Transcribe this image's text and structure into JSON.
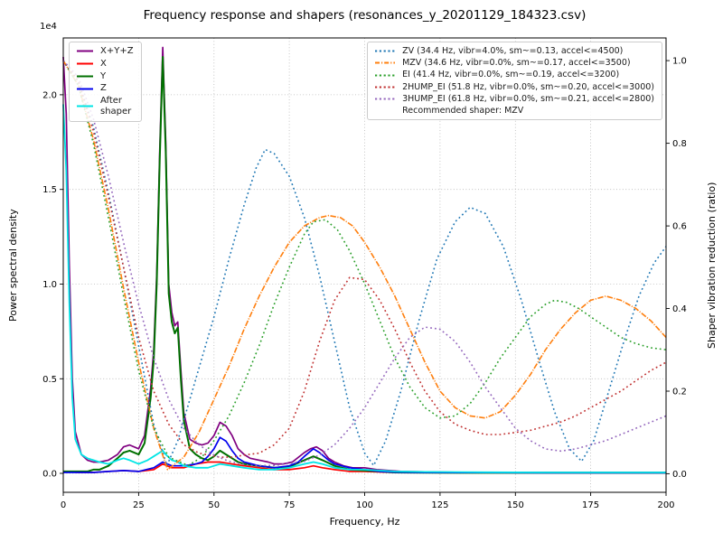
{
  "chart_data": {
    "type": "line",
    "title": "Frequency response and shapers (resonances_y_20201129_184323.csv)",
    "legend_note": "Recommended shaper: MZV",
    "x_axis": {
      "label": "Frequency, Hz",
      "range": [
        0,
        200
      ],
      "ticks": [
        0,
        25,
        50,
        75,
        100,
        125,
        150,
        175,
        200
      ],
      "tick_labels": [
        "0",
        "25",
        "50",
        "75",
        "100",
        "125",
        "150",
        "175",
        "200"
      ]
    },
    "left_axis": {
      "label": "Power spectral density",
      "offset_text": "1e4",
      "range": [
        -0.1,
        2.3
      ],
      "ticks": [
        0.0,
        0.5,
        1.0,
        1.5,
        2.0
      ],
      "tick_labels": [
        "0.0",
        "0.5",
        "1.0",
        "1.5",
        "2.0"
      ]
    },
    "right_axis": {
      "label": "Shaper vibration reduction (ratio)",
      "range": [
        -0.045,
        1.055
      ],
      "ticks": [
        0.0,
        0.2,
        0.4,
        0.6,
        0.8,
        1.0
      ],
      "tick_labels": [
        "0.0",
        "0.2",
        "0.4",
        "0.6",
        "0.8",
        "1.0"
      ]
    },
    "grid": true,
    "series": [
      {
        "id": "xyz",
        "legend": "left",
        "label": "X+Y+Z",
        "axis": "left",
        "color": "#800080",
        "style": "solid",
        "width": 1.7,
        "x": [
          0,
          1,
          2,
          3,
          4,
          6,
          8,
          10,
          12,
          15,
          18,
          20,
          22,
          25,
          27,
          29,
          30,
          31,
          32,
          33,
          34,
          35,
          36,
          37,
          38,
          39,
          40,
          42,
          44,
          46,
          48,
          50,
          52,
          54,
          56,
          58,
          60,
          62,
          65,
          68,
          70,
          73,
          76,
          80,
          82,
          84,
          86,
          88,
          90,
          93,
          96,
          100,
          104,
          108,
          112,
          120,
          130,
          140,
          160,
          180,
          200
        ],
        "y": [
          2.2,
          1.9,
          1.1,
          0.5,
          0.22,
          0.1,
          0.07,
          0.06,
          0.06,
          0.07,
          0.1,
          0.14,
          0.15,
          0.13,
          0.2,
          0.45,
          0.65,
          1.05,
          1.7,
          2.25,
          1.75,
          1.0,
          0.85,
          0.78,
          0.8,
          0.55,
          0.32,
          0.18,
          0.16,
          0.15,
          0.16,
          0.2,
          0.27,
          0.25,
          0.2,
          0.13,
          0.1,
          0.08,
          0.07,
          0.06,
          0.05,
          0.05,
          0.06,
          0.11,
          0.13,
          0.14,
          0.12,
          0.08,
          0.06,
          0.04,
          0.03,
          0.03,
          0.02,
          0.015,
          0.01,
          0.008,
          0.006,
          0.005,
          0.005,
          0.005,
          0.005
        ]
      },
      {
        "id": "x",
        "legend": "left",
        "label": "X",
        "axis": "left",
        "color": "#ff0000",
        "style": "solid",
        "width": 1.7,
        "x": [
          0,
          5,
          10,
          15,
          20,
          25,
          30,
          33,
          36,
          40,
          44,
          48,
          52,
          56,
          60,
          65,
          70,
          75,
          80,
          83,
          86,
          90,
          95,
          100,
          110,
          120,
          140,
          160,
          180,
          200
        ],
        "y": [
          0.01,
          0.005,
          0.005,
          0.01,
          0.015,
          0.01,
          0.02,
          0.05,
          0.03,
          0.03,
          0.05,
          0.06,
          0.06,
          0.05,
          0.04,
          0.03,
          0.02,
          0.02,
          0.03,
          0.04,
          0.03,
          0.02,
          0.01,
          0.01,
          0.005,
          0.004,
          0.003,
          0.003,
          0.003,
          0.003
        ]
      },
      {
        "id": "y",
        "legend": "left",
        "label": "Y",
        "axis": "left",
        "color": "#007000",
        "style": "solid",
        "width": 2,
        "x": [
          0,
          2,
          4,
          6,
          8,
          10,
          12,
          15,
          18,
          20,
          22,
          25,
          27,
          29,
          30,
          31,
          32,
          33,
          34,
          35,
          36,
          37,
          38,
          39,
          40,
          42,
          44,
          46,
          48,
          50,
          52,
          54,
          56,
          58,
          60,
          65,
          70,
          75,
          80,
          83,
          86,
          90,
          95,
          100,
          105,
          110,
          120,
          140,
          160,
          180,
          200
        ],
        "y": [
          0.01,
          0.01,
          0.01,
          0.01,
          0.01,
          0.02,
          0.02,
          0.04,
          0.08,
          0.11,
          0.12,
          0.1,
          0.16,
          0.4,
          0.6,
          1.0,
          1.65,
          2.2,
          1.7,
          0.95,
          0.8,
          0.74,
          0.77,
          0.5,
          0.28,
          0.13,
          0.1,
          0.08,
          0.07,
          0.09,
          0.12,
          0.1,
          0.08,
          0.06,
          0.05,
          0.04,
          0.03,
          0.035,
          0.07,
          0.09,
          0.07,
          0.04,
          0.02,
          0.015,
          0.01,
          0.005,
          0.004,
          0.003,
          0.003,
          0.003,
          0.003
        ]
      },
      {
        "id": "z",
        "legend": "left",
        "label": "Z",
        "axis": "left",
        "color": "#0000ee",
        "style": "solid",
        "width": 1.7,
        "x": [
          0,
          5,
          10,
          15,
          20,
          25,
          30,
          33,
          36,
          40,
          44,
          46,
          48,
          50,
          52,
          54,
          56,
          58,
          60,
          65,
          70,
          75,
          78,
          80,
          83,
          85,
          88,
          90,
          95,
          100,
          105,
          110,
          120,
          140,
          160,
          180,
          200
        ],
        "y": [
          0.005,
          0.005,
          0.005,
          0.01,
          0.015,
          0.01,
          0.03,
          0.06,
          0.04,
          0.04,
          0.05,
          0.06,
          0.09,
          0.13,
          0.19,
          0.17,
          0.12,
          0.08,
          0.06,
          0.04,
          0.03,
          0.04,
          0.06,
          0.09,
          0.13,
          0.11,
          0.07,
          0.05,
          0.03,
          0.02,
          0.01,
          0.007,
          0.005,
          0.004,
          0.003,
          0.003,
          0.003
        ]
      },
      {
        "id": "after-shaper",
        "legend": "left",
        "label": "After\nshaper",
        "axis": "left",
        "color": "#00e5e5",
        "style": "solid",
        "width": 1.8,
        "x": [
          0,
          1,
          2,
          3,
          4,
          6,
          8,
          10,
          12,
          15,
          18,
          20,
          22,
          25,
          28,
          30,
          32,
          33,
          34,
          36,
          38,
          40,
          44,
          48,
          52,
          56,
          60,
          65,
          70,
          75,
          80,
          83,
          86,
          90,
          95,
          100,
          110,
          120,
          140,
          160,
          180,
          200
        ],
        "y": [
          1.95,
          1.6,
          0.9,
          0.4,
          0.18,
          0.1,
          0.08,
          0.07,
          0.06,
          0.05,
          0.07,
          0.08,
          0.07,
          0.05,
          0.07,
          0.09,
          0.11,
          0.12,
          0.1,
          0.07,
          0.06,
          0.04,
          0.03,
          0.03,
          0.05,
          0.04,
          0.03,
          0.02,
          0.02,
          0.03,
          0.05,
          0.06,
          0.05,
          0.03,
          0.02,
          0.02,
          0.01,
          0.008,
          0.006,
          0.005,
          0.005,
          0.005
        ]
      },
      {
        "id": "zv",
        "legend": "right",
        "label": "ZV (34.4 Hz, vibr=4.0%, sm~=0.13, accel<=4500)",
        "axis": "right",
        "color": "#1f77b4",
        "style": "dotted",
        "width": 1.6,
        "x": [
          0,
          5,
          10,
          15,
          20,
          25,
          30,
          34.4,
          38,
          42,
          46,
          50,
          55,
          60,
          64,
          67,
          70,
          75,
          80,
          85,
          90,
          95,
          100,
          103,
          107,
          112,
          118,
          124,
          130,
          135,
          140,
          146,
          152,
          158,
          163,
          168,
          172,
          176,
          181,
          186,
          191,
          196,
          200
        ],
        "y": [
          1.0,
          0.95,
          0.84,
          0.68,
          0.5,
          0.31,
          0.12,
          0.02,
          0.08,
          0.18,
          0.28,
          0.38,
          0.52,
          0.65,
          0.74,
          0.785,
          0.775,
          0.72,
          0.62,
          0.48,
          0.32,
          0.16,
          0.05,
          0.02,
          0.08,
          0.2,
          0.37,
          0.52,
          0.61,
          0.645,
          0.63,
          0.55,
          0.42,
          0.27,
          0.15,
          0.06,
          0.03,
          0.08,
          0.2,
          0.32,
          0.43,
          0.51,
          0.55
        ]
      },
      {
        "id": "mzv",
        "legend": "right",
        "label": "MZV (34.6 Hz, vibr=0.0%, sm~=0.17, accel<=3500)",
        "axis": "right",
        "color": "#ff7f0e",
        "style": "dashdot",
        "width": 1.6,
        "x": [
          0,
          5,
          10,
          15,
          20,
          25,
          30,
          34.6,
          40,
          45,
          50,
          55,
          60,
          65,
          70,
          75,
          80,
          85,
          88,
          92,
          96,
          100,
          105,
          110,
          115,
          120,
          125,
          130,
          135,
          140,
          145,
          150,
          155,
          160,
          165,
          170,
          175,
          180,
          185,
          190,
          195,
          200
        ],
        "y": [
          1.0,
          0.94,
          0.81,
          0.64,
          0.45,
          0.27,
          0.11,
          0.01,
          0.04,
          0.1,
          0.18,
          0.26,
          0.35,
          0.43,
          0.5,
          0.56,
          0.6,
          0.62,
          0.625,
          0.62,
          0.6,
          0.56,
          0.5,
          0.43,
          0.35,
          0.27,
          0.2,
          0.16,
          0.14,
          0.135,
          0.15,
          0.19,
          0.24,
          0.3,
          0.35,
          0.39,
          0.42,
          0.43,
          0.42,
          0.4,
          0.37,
          0.33
        ]
      },
      {
        "id": "ei",
        "legend": "right",
        "label": "EI (41.4 Hz, vibr=0.0%, sm~=0.19, accel<=3200)",
        "axis": "right",
        "color": "#2ca02c",
        "style": "dotted",
        "width": 1.6,
        "x": [
          0,
          5,
          10,
          15,
          20,
          25,
          30,
          35,
          41.4,
          46,
          50,
          55,
          60,
          65,
          70,
          75,
          80,
          83,
          87,
          91,
          95,
          100,
          105,
          110,
          115,
          120,
          125,
          130,
          135,
          140,
          145,
          150,
          155,
          160,
          163,
          167,
          171,
          175,
          180,
          185,
          190,
          195,
          200
        ],
        "y": [
          1.0,
          0.94,
          0.8,
          0.62,
          0.43,
          0.25,
          0.11,
          0.04,
          0.02,
          0.04,
          0.08,
          0.14,
          0.22,
          0.31,
          0.41,
          0.5,
          0.58,
          0.61,
          0.615,
          0.59,
          0.54,
          0.46,
          0.37,
          0.28,
          0.21,
          0.16,
          0.135,
          0.14,
          0.17,
          0.22,
          0.28,
          0.33,
          0.38,
          0.41,
          0.42,
          0.415,
          0.4,
          0.38,
          0.355,
          0.33,
          0.315,
          0.305,
          0.3
        ]
      },
      {
        "id": "2hump-ei",
        "legend": "right",
        "label": "2HUMP_EI (51.8 Hz, vibr=0.0%, sm~=0.20, accel<=3000)",
        "axis": "right",
        "color": "#c03030",
        "style": "dotted",
        "width": 1.6,
        "x": [
          0,
          5,
          10,
          15,
          20,
          25,
          30,
          35,
          40,
          45,
          51.8,
          56,
          60,
          65,
          70,
          75,
          80,
          85,
          90,
          95,
          100,
          105,
          110,
          115,
          120,
          125,
          130,
          135,
          140,
          145,
          150,
          155,
          160,
          165,
          170,
          175,
          180,
          185,
          190,
          195,
          200
        ],
        "y": [
          1.0,
          0.95,
          0.83,
          0.67,
          0.5,
          0.33,
          0.2,
          0.12,
          0.07,
          0.05,
          0.04,
          0.04,
          0.045,
          0.05,
          0.07,
          0.11,
          0.2,
          0.32,
          0.42,
          0.475,
          0.47,
          0.42,
          0.35,
          0.27,
          0.2,
          0.15,
          0.12,
          0.105,
          0.095,
          0.095,
          0.1,
          0.105,
          0.115,
          0.125,
          0.14,
          0.16,
          0.18,
          0.2,
          0.225,
          0.25,
          0.27
        ]
      },
      {
        "id": "3hump-ei",
        "legend": "right",
        "label": "3HUMP_EI (61.8 Hz, vibr=0.0%, sm~=0.21, accel<=2800)",
        "axis": "right",
        "color": "#9467bd",
        "style": "dotted",
        "width": 1.6,
        "x": [
          0,
          5,
          10,
          15,
          20,
          25,
          30,
          35,
          40,
          45,
          50,
          55,
          61.8,
          66,
          70,
          75,
          80,
          85,
          90,
          95,
          100,
          105,
          110,
          115,
          120,
          125,
          130,
          135,
          140,
          145,
          150,
          155,
          160,
          165,
          170,
          175,
          180,
          185,
          190,
          195,
          200
        ],
        "y": [
          1.0,
          0.96,
          0.86,
          0.72,
          0.56,
          0.41,
          0.28,
          0.18,
          0.11,
          0.07,
          0.045,
          0.03,
          0.02,
          0.02,
          0.02,
          0.025,
          0.03,
          0.045,
          0.07,
          0.11,
          0.16,
          0.22,
          0.28,
          0.33,
          0.355,
          0.35,
          0.32,
          0.27,
          0.21,
          0.16,
          0.11,
          0.08,
          0.06,
          0.055,
          0.06,
          0.07,
          0.08,
          0.095,
          0.11,
          0.125,
          0.14
        ]
      }
    ]
  }
}
